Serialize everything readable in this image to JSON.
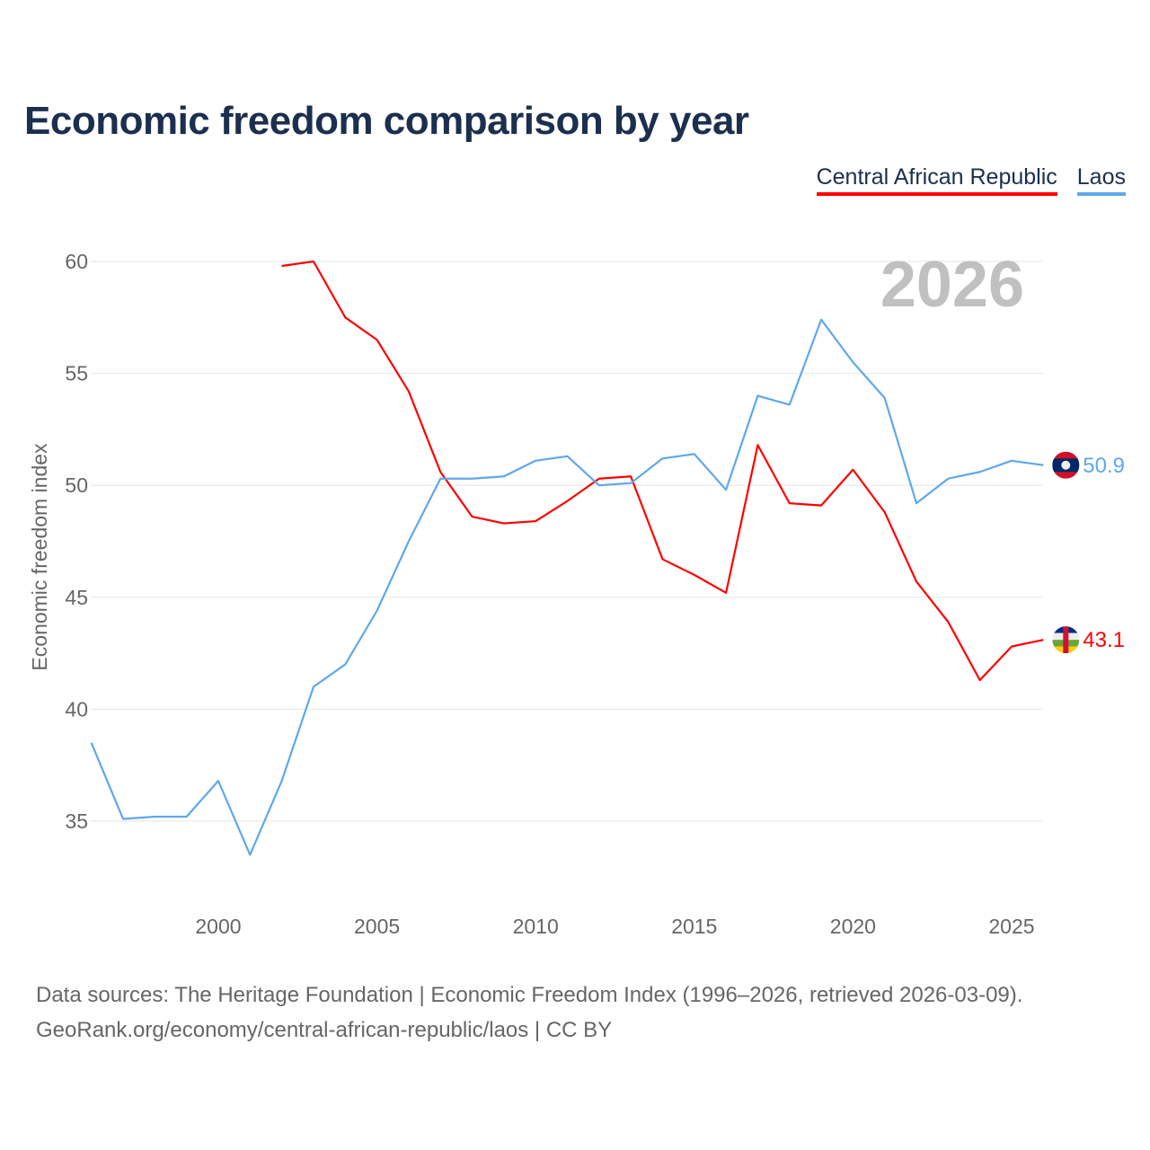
{
  "chart_data": {
    "type": "line",
    "title": "Economic freedom comparison by year",
    "xlabel": "",
    "ylabel": "Economic freedom index",
    "xlim": [
      1996,
      2026
    ],
    "ylim": [
      31,
      62
    ],
    "x_ticks": [
      2000,
      2005,
      2010,
      2015,
      2020,
      2025
    ],
    "y_ticks": [
      35,
      40,
      45,
      50,
      55,
      60
    ],
    "grid": true,
    "legend_position": "top-right",
    "year_watermark": "2026",
    "series": [
      {
        "name": "Central African Republic",
        "color": "#ff0000",
        "end_label": "43.1",
        "x": [
          2002,
          2003,
          2004,
          2005,
          2006,
          2007,
          2008,
          2009,
          2010,
          2011,
          2012,
          2013,
          2014,
          2015,
          2016,
          2017,
          2018,
          2019,
          2020,
          2021,
          2022,
          2023,
          2024,
          2025,
          2026
        ],
        "values": [
          59.8,
          60.0,
          57.5,
          56.5,
          54.2,
          50.6,
          48.6,
          48.3,
          48.4,
          49.3,
          50.3,
          50.4,
          46.7,
          46.0,
          45.2,
          51.8,
          49.2,
          49.1,
          50.7,
          48.8,
          45.7,
          43.9,
          41.3,
          42.8,
          43.1
        ]
      },
      {
        "name": "Laos",
        "color": "#5fa8ea",
        "end_label": "50.9",
        "x": [
          1996,
          1997,
          1998,
          1999,
          2000,
          2001,
          2002,
          2003,
          2004,
          2005,
          2006,
          2007,
          2008,
          2009,
          2010,
          2011,
          2012,
          2013,
          2014,
          2015,
          2016,
          2017,
          2018,
          2019,
          2020,
          2021,
          2022,
          2023,
          2024,
          2025,
          2026
        ],
        "values": [
          38.5,
          35.1,
          35.2,
          35.2,
          36.8,
          33.5,
          36.8,
          41.0,
          42.0,
          44.4,
          47.5,
          50.3,
          50.3,
          50.4,
          51.1,
          51.3,
          50.0,
          50.1,
          51.2,
          51.4,
          49.8,
          54.0,
          53.6,
          57.4,
          55.5,
          53.9,
          49.2,
          50.3,
          50.6,
          51.1,
          50.9
        ]
      }
    ]
  },
  "source": {
    "line1": "Data sources: The Heritage Foundation | Economic Freedom Index (1996–2026, retrieved 2026-03-09).",
    "line2": "GeoRank.org/economy/central-african-republic/laos | CC BY"
  }
}
